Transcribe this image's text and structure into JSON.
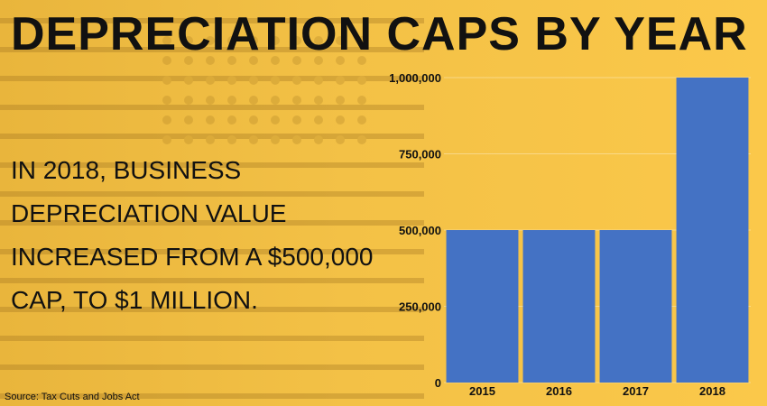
{
  "headline": "DEPRECIATION CAPS BY YEAR",
  "body": "IN 2018, BUSINESS DEPRECIATION VALUE INCREASED FROM A $500,000 CAP, TO $1 MILLION.",
  "source": "Source: Tax Cuts and Jobs Act",
  "colors": {
    "background": "#f3c146",
    "bar": "#4472c4",
    "text": "#111111"
  },
  "chart_data": {
    "type": "bar",
    "categories": [
      "2015",
      "2016",
      "2017",
      "2018"
    ],
    "values": [
      500000,
      500000,
      500000,
      1000000
    ],
    "ylim": [
      0,
      1000000
    ],
    "yticks": [
      0,
      250000,
      500000,
      750000,
      1000000
    ],
    "ytick_labels": [
      "0",
      "250,000",
      "500,000",
      "750,000",
      "1,000,000"
    ],
    "grid": true,
    "legend": "none"
  }
}
